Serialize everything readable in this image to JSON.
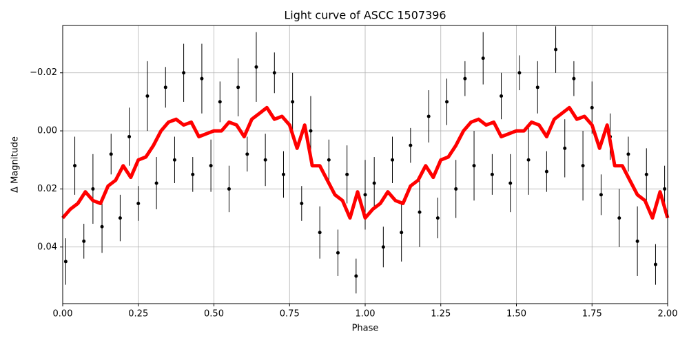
{
  "chart_data": {
    "type": "scatter_line",
    "title": "Light curve of ASCC 1507396",
    "xlabel": "Phase",
    "ylabel": "Δ Magnitude",
    "xlim": [
      0,
      2
    ],
    "ylim": [
      -0.0363,
      0.0595
    ],
    "y_inverted": true,
    "grid": true,
    "xticks": [
      {
        "value": 0,
        "label": "0.00"
      },
      0.25,
      {
        "value": 0.5,
        "label": "0.50"
      },
      0.75,
      {
        "value": 1,
        "label": "1.00"
      },
      1.25,
      {
        "value": 1.5,
        "label": "1.50"
      },
      1.75,
      {
        "value": 2,
        "label": "2.00"
      }
    ],
    "yticks": [
      {
        "value": -0.02,
        "label": "−0.02"
      },
      {
        "value": 0,
        "label": "0.00"
      },
      0.02,
      0.04
    ],
    "points": {
      "color": "#000000",
      "x": [
        0.01,
        0.04,
        0.07,
        0.1,
        0.13,
        0.16,
        0.19,
        0.22,
        0.25,
        0.28,
        0.31,
        0.34,
        0.37,
        0.4,
        0.43,
        0.46,
        0.49,
        0.52,
        0.55,
        0.58,
        0.61,
        0.64,
        0.67,
        0.7,
        0.73,
        0.76,
        0.79,
        0.82,
        0.85,
        0.88,
        0.91,
        0.94,
        0.97,
        1.0,
        1.03,
        1.06,
        1.09,
        1.12,
        1.15,
        1.18,
        1.21,
        1.24,
        1.27,
        1.3,
        1.33,
        1.36,
        1.39,
        1.42,
        1.45,
        1.48,
        1.51,
        1.54,
        1.57,
        1.6,
        1.63,
        1.66,
        1.69,
        1.72,
        1.75,
        1.78,
        1.81,
        1.84,
        1.87,
        1.9,
        1.93,
        1.96,
        1.99
      ],
      "values": [
        0.045,
        0.012,
        0.038,
        0.02,
        0.033,
        0.008,
        0.03,
        0.002,
        0.025,
        -0.012,
        0.018,
        -0.015,
        0.01,
        -0.02,
        0.015,
        -0.018,
        0.012,
        -0.01,
        0.02,
        -0.015,
        0.008,
        -0.022,
        0.01,
        -0.02,
        0.015,
        -0.01,
        0.025,
        0.0,
        0.035,
        0.01,
        0.042,
        0.015,
        0.05,
        0.022,
        0.018,
        0.04,
        0.01,
        0.035,
        0.005,
        0.028,
        -0.005,
        0.03,
        -0.01,
        0.02,
        -0.018,
        0.012,
        -0.025,
        0.015,
        -0.012,
        0.018,
        -0.02,
        0.01,
        -0.015,
        0.014,
        -0.028,
        0.006,
        -0.018,
        0.012,
        -0.008,
        0.022,
        0.002,
        0.03,
        0.008,
        0.038,
        0.015,
        0.046,
        0.02
      ],
      "errors": [
        0.008,
        0.01,
        0.006,
        0.012,
        0.009,
        0.007,
        0.008,
        0.01,
        0.006,
        0.012,
        0.009,
        0.007,
        0.008,
        0.01,
        0.006,
        0.012,
        0.009,
        0.007,
        0.008,
        0.01,
        0.006,
        0.012,
        0.009,
        0.007,
        0.008,
        0.01,
        0.006,
        0.012,
        0.009,
        0.007,
        0.008,
        0.01,
        0.006,
        0.012,
        0.009,
        0.007,
        0.008,
        0.01,
        0.006,
        0.012,
        0.009,
        0.007,
        0.008,
        0.01,
        0.006,
        0.012,
        0.009,
        0.007,
        0.008,
        0.01,
        0.006,
        0.012,
        0.009,
        0.007,
        0.008,
        0.01,
        0.006,
        0.012,
        0.009,
        0.007,
        0.008,
        0.01,
        0.006,
        0.012,
        0.009,
        0.007,
        0.008
      ]
    },
    "curve": {
      "color": "#ff0000",
      "x": [
        0,
        0.025,
        0.05,
        0.075,
        0.1,
        0.125,
        0.15,
        0.175,
        0.2,
        0.225,
        0.25,
        0.275,
        0.3,
        0.325,
        0.35,
        0.375,
        0.4,
        0.425,
        0.45,
        0.475,
        0.5,
        0.525,
        0.55,
        0.575,
        0.6,
        0.625,
        0.65,
        0.675,
        0.7,
        0.725,
        0.75,
        0.775,
        0.8,
        0.825,
        0.85,
        0.875,
        0.9,
        0.925,
        0.95,
        0.975,
        1,
        1.025,
        1.05,
        1.075,
        1.1,
        1.125,
        1.15,
        1.175,
        1.2,
        1.225,
        1.25,
        1.275,
        1.3,
        1.325,
        1.35,
        1.375,
        1.4,
        1.425,
        1.45,
        1.475,
        1.5,
        1.525,
        1.55,
        1.575,
        1.6,
        1.625,
        1.65,
        1.675,
        1.7,
        1.725,
        1.75,
        1.775,
        1.8,
        1.825,
        1.85,
        1.875,
        1.9,
        1.925,
        1.95,
        1.975,
        2
      ],
      "values": [
        0.03,
        0.027,
        0.025,
        0.021,
        0.024,
        0.025,
        0.019,
        0.017,
        0.012,
        0.016,
        0.01,
        0.009,
        0.005,
        0.0,
        -0.003,
        -0.004,
        -0.002,
        -0.003,
        0.002,
        0.001,
        0.0,
        0.0,
        -0.003,
        -0.002,
        0.002,
        -0.004,
        -0.006,
        -0.008,
        -0.004,
        -0.005,
        -0.002,
        0.006,
        -0.002,
        0.012,
        0.012,
        0.017,
        0.022,
        0.024,
        0.03,
        0.021,
        0.03,
        0.027,
        0.025,
        0.021,
        0.024,
        0.025,
        0.019,
        0.017,
        0.012,
        0.016,
        0.01,
        0.009,
        0.005,
        0.0,
        -0.003,
        -0.004,
        -0.002,
        -0.003,
        0.002,
        0.001,
        0.0,
        0.0,
        -0.003,
        -0.002,
        0.002,
        -0.004,
        -0.006,
        -0.008,
        -0.004,
        -0.005,
        -0.002,
        0.006,
        -0.002,
        0.012,
        0.012,
        0.017,
        0.022,
        0.024,
        0.03,
        0.021,
        0.03
      ]
    }
  }
}
